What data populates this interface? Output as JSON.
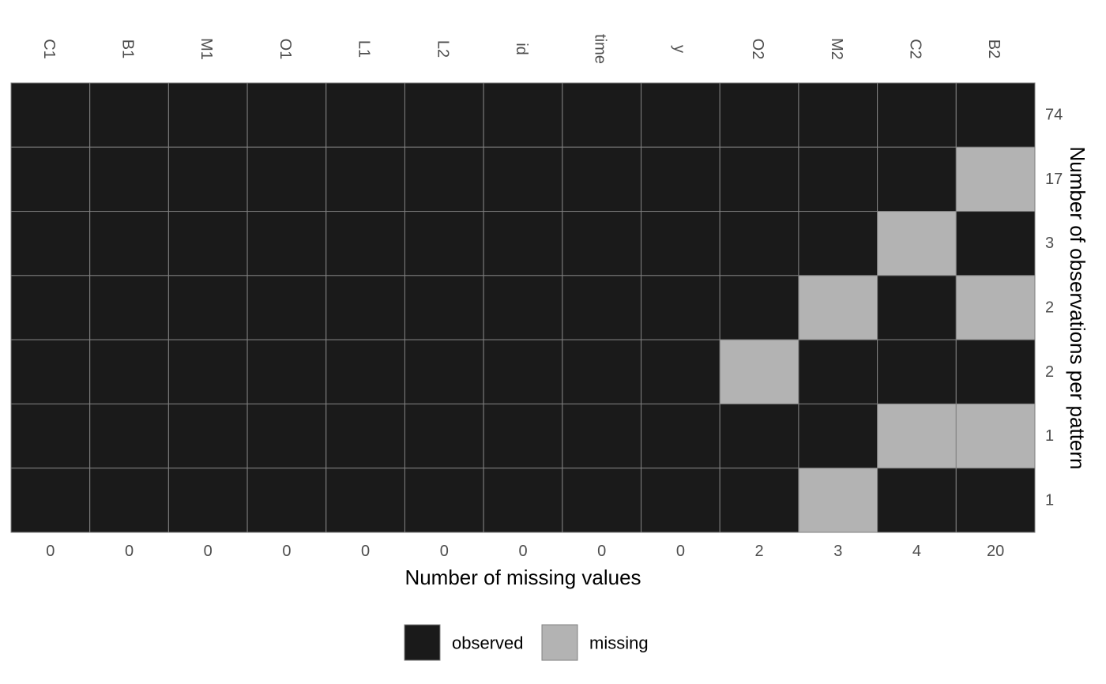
{
  "chart_data": {
    "type": "heatmap",
    "title": "",
    "columns": [
      "C1",
      "B1",
      "M1",
      "O1",
      "L1",
      "L2",
      "id",
      "time",
      "y",
      "O2",
      "M2",
      "C2",
      "B2"
    ],
    "missing_counts": [
      "0",
      "0",
      "0",
      "0",
      "0",
      "0",
      "0",
      "0",
      "0",
      "2",
      "3",
      "4",
      "20"
    ],
    "pattern_counts": [
      "74",
      "17",
      "3",
      "2",
      "2",
      "1",
      "1"
    ],
    "patterns": [
      [
        1,
        1,
        1,
        1,
        1,
        1,
        1,
        1,
        1,
        1,
        1,
        1,
        1
      ],
      [
        1,
        1,
        1,
        1,
        1,
        1,
        1,
        1,
        1,
        1,
        1,
        1,
        0
      ],
      [
        1,
        1,
        1,
        1,
        1,
        1,
        1,
        1,
        1,
        1,
        1,
        0,
        1
      ],
      [
        1,
        1,
        1,
        1,
        1,
        1,
        1,
        1,
        1,
        1,
        0,
        1,
        0
      ],
      [
        1,
        1,
        1,
        1,
        1,
        1,
        1,
        1,
        1,
        0,
        1,
        1,
        1
      ],
      [
        1,
        1,
        1,
        1,
        1,
        1,
        1,
        1,
        1,
        1,
        1,
        0,
        0
      ],
      [
        1,
        1,
        1,
        1,
        1,
        1,
        1,
        1,
        1,
        1,
        0,
        1,
        1
      ]
    ],
    "xlabel": "Number of missing values",
    "ylabel": "Number of observations per pattern",
    "legend": {
      "position": "bottom",
      "items": [
        {
          "label": "observed",
          "color": "#1a1a1a"
        },
        {
          "label": "missing",
          "color": "#b3b3b3"
        }
      ]
    },
    "colors": {
      "observed": "#1a1a1a",
      "missing": "#b3b3b3",
      "grid": "#808080"
    }
  }
}
